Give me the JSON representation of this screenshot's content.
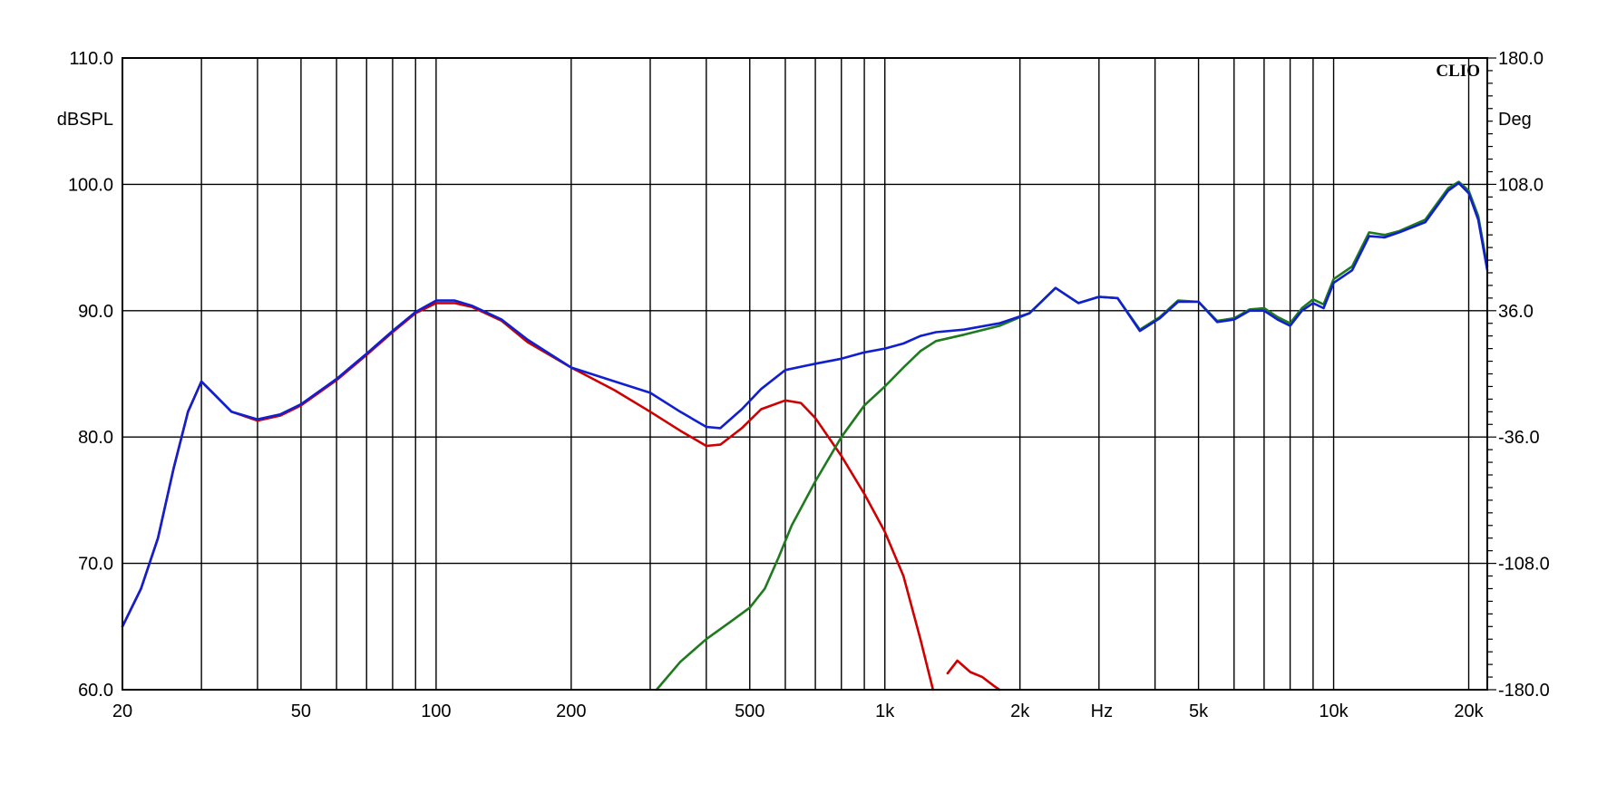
{
  "chart_data": {
    "type": "line",
    "brand": "CLIO",
    "x_scale": "log",
    "xlim": [
      20,
      22000
    ],
    "ylim": [
      60,
      110
    ],
    "y2lim": [
      -180,
      180
    ],
    "ylabel": "dBSPL",
    "y2label": "Deg",
    "xunit_label": "Hz",
    "grid": true,
    "x_ticks": [
      {
        "value": 20,
        "label": "20"
      },
      {
        "value": 50,
        "label": "50"
      },
      {
        "value": 100,
        "label": "100"
      },
      {
        "value": 200,
        "label": "200"
      },
      {
        "value": 500,
        "label": "500"
      },
      {
        "value": 1000,
        "label": "1k"
      },
      {
        "value": 2000,
        "label": "2k"
      },
      {
        "value": 5000,
        "label": "5k"
      },
      {
        "value": 10000,
        "label": "10k"
      },
      {
        "value": 20000,
        "label": "20k"
      }
    ],
    "y_ticks": [
      {
        "value": 60,
        "label": "60.0"
      },
      {
        "value": 70,
        "label": "70.0"
      },
      {
        "value": 80,
        "label": "80.0"
      },
      {
        "value": 90,
        "label": "90.0"
      },
      {
        "value": 100,
        "label": "100.0"
      },
      {
        "value": 110,
        "label": "110.0"
      }
    ],
    "y2_ticks": [
      {
        "value": -180,
        "label": "-180.0"
      },
      {
        "value": -108,
        "label": "-108.0"
      },
      {
        "value": -36,
        "label": "-36.0"
      },
      {
        "value": 36,
        "label": "36.0"
      },
      {
        "value": 108,
        "label": "108.0"
      },
      {
        "value": 180,
        "label": "180.0"
      }
    ],
    "x_gridlines": [
      30,
      40,
      50,
      60,
      70,
      80,
      90,
      100,
      200,
      300,
      400,
      500,
      600,
      700,
      800,
      900,
      1000,
      2000,
      3000,
      4000,
      5000,
      6000,
      7000,
      8000,
      9000,
      10000,
      20000
    ],
    "series": [
      {
        "color": "#d00000",
        "points": [
          [
            20,
            65.0
          ],
          [
            22,
            68.0
          ],
          [
            24,
            72.0
          ],
          [
            26,
            77.5
          ],
          [
            28,
            82.0
          ],
          [
            30,
            84.4
          ],
          [
            32,
            83.4
          ],
          [
            35,
            82.0
          ],
          [
            40,
            81.3
          ],
          [
            45,
            81.7
          ],
          [
            50,
            82.5
          ],
          [
            60,
            84.5
          ],
          [
            70,
            86.5
          ],
          [
            80,
            88.3
          ],
          [
            90,
            89.8
          ],
          [
            100,
            90.6
          ],
          [
            110,
            90.6
          ],
          [
            120,
            90.3
          ],
          [
            140,
            89.2
          ],
          [
            160,
            87.5
          ],
          [
            200,
            85.5
          ],
          [
            250,
            83.7
          ],
          [
            300,
            82.0
          ],
          [
            350,
            80.5
          ],
          [
            400,
            79.3
          ],
          [
            430,
            79.4
          ],
          [
            480,
            80.7
          ],
          [
            530,
            82.2
          ],
          [
            600,
            82.9
          ],
          [
            650,
            82.7
          ],
          [
            700,
            81.5
          ],
          [
            800,
            78.5
          ],
          [
            900,
            75.5
          ],
          [
            1000,
            72.5
          ],
          [
            1100,
            69.0
          ],
          [
            1200,
            64.0
          ],
          [
            1280,
            60.0
          ]
        ]
      },
      {
        "color": "#d00000",
        "points": [
          [
            1380,
            61.3
          ],
          [
            1450,
            62.3
          ],
          [
            1550,
            61.4
          ],
          [
            1650,
            61.0
          ],
          [
            1750,
            60.3
          ],
          [
            1800,
            60.0
          ]
        ]
      },
      {
        "color": "#1f7a1f",
        "points": [
          [
            310,
            60.0
          ],
          [
            350,
            62.2
          ],
          [
            400,
            64.0
          ],
          [
            450,
            65.3
          ],
          [
            500,
            66.5
          ],
          [
            540,
            68.0
          ],
          [
            580,
            70.5
          ],
          [
            620,
            73.0
          ],
          [
            700,
            76.5
          ],
          [
            800,
            80.0
          ],
          [
            900,
            82.5
          ],
          [
            1000,
            84.0
          ],
          [
            1100,
            85.5
          ],
          [
            1200,
            86.8
          ],
          [
            1300,
            87.6
          ],
          [
            1500,
            88.1
          ],
          [
            1800,
            88.8
          ],
          [
            2100,
            89.8
          ],
          [
            2400,
            91.8
          ],
          [
            2700,
            90.6
          ],
          [
            3000,
            91.1
          ],
          [
            3300,
            91.0
          ],
          [
            3700,
            88.5
          ],
          [
            4100,
            89.5
          ],
          [
            4500,
            90.8
          ],
          [
            5000,
            90.7
          ],
          [
            5500,
            89.2
          ],
          [
            6000,
            89.4
          ],
          [
            6500,
            90.1
          ],
          [
            7000,
            90.2
          ],
          [
            7500,
            89.5
          ],
          [
            8000,
            89.0
          ],
          [
            8500,
            90.2
          ],
          [
            9000,
            90.9
          ],
          [
            9500,
            90.5
          ],
          [
            10000,
            92.5
          ],
          [
            11000,
            93.5
          ],
          [
            12000,
            96.2
          ],
          [
            13000,
            96.0
          ],
          [
            14000,
            96.3
          ],
          [
            16000,
            97.2
          ],
          [
            18000,
            99.7
          ],
          [
            19000,
            100.2
          ],
          [
            20000,
            99.5
          ],
          [
            21000,
            97.5
          ],
          [
            22000,
            93.5
          ]
        ]
      },
      {
        "color": "#1020d0",
        "points": [
          [
            20,
            65.0
          ],
          [
            22,
            68.0
          ],
          [
            24,
            72.0
          ],
          [
            26,
            77.5
          ],
          [
            28,
            82.0
          ],
          [
            30,
            84.4
          ],
          [
            32,
            83.4
          ],
          [
            35,
            82.0
          ],
          [
            40,
            81.4
          ],
          [
            45,
            81.8
          ],
          [
            50,
            82.6
          ],
          [
            60,
            84.6
          ],
          [
            70,
            86.6
          ],
          [
            80,
            88.4
          ],
          [
            90,
            89.9
          ],
          [
            100,
            90.8
          ],
          [
            110,
            90.8
          ],
          [
            120,
            90.4
          ],
          [
            140,
            89.3
          ],
          [
            160,
            87.7
          ],
          [
            200,
            85.5
          ],
          [
            250,
            84.4
          ],
          [
            300,
            83.5
          ],
          [
            350,
            82.0
          ],
          [
            400,
            80.8
          ],
          [
            430,
            80.7
          ],
          [
            480,
            82.2
          ],
          [
            530,
            83.8
          ],
          [
            600,
            85.3
          ],
          [
            700,
            85.8
          ],
          [
            800,
            86.2
          ],
          [
            900,
            86.7
          ],
          [
            1000,
            87.0
          ],
          [
            1100,
            87.4
          ],
          [
            1200,
            88.0
          ],
          [
            1300,
            88.3
          ],
          [
            1500,
            88.5
          ],
          [
            1800,
            89.0
          ],
          [
            2100,
            89.8
          ],
          [
            2400,
            91.8
          ],
          [
            2700,
            90.6
          ],
          [
            3000,
            91.1
          ],
          [
            3300,
            91.0
          ],
          [
            3700,
            88.4
          ],
          [
            4100,
            89.4
          ],
          [
            4500,
            90.7
          ],
          [
            5000,
            90.7
          ],
          [
            5500,
            89.1
          ],
          [
            6000,
            89.3
          ],
          [
            6500,
            90.0
          ],
          [
            7000,
            90.0
          ],
          [
            7500,
            89.3
          ],
          [
            8000,
            88.8
          ],
          [
            8500,
            90.0
          ],
          [
            9000,
            90.6
          ],
          [
            9500,
            90.2
          ],
          [
            10000,
            92.2
          ],
          [
            11000,
            93.2
          ],
          [
            12000,
            95.9
          ],
          [
            13000,
            95.8
          ],
          [
            14000,
            96.2
          ],
          [
            16000,
            97.0
          ],
          [
            18000,
            99.5
          ],
          [
            19000,
            100.1
          ],
          [
            20000,
            99.3
          ],
          [
            21000,
            97.2
          ],
          [
            22000,
            93.2
          ]
        ]
      }
    ]
  }
}
